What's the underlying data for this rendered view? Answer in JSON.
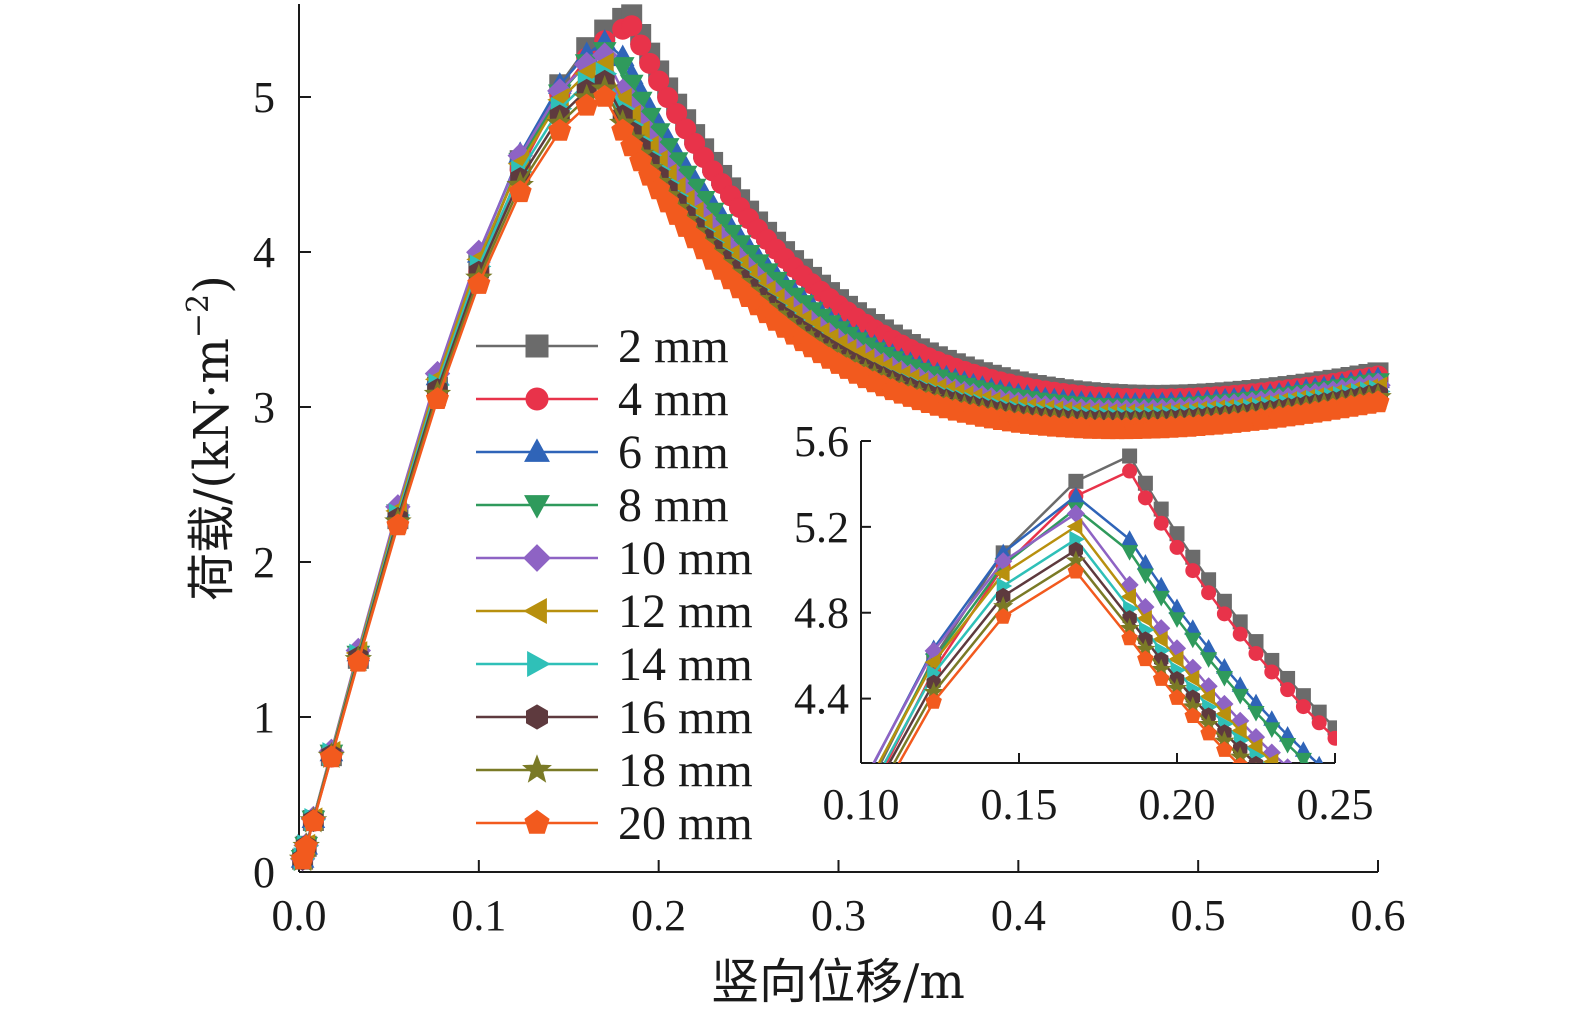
{
  "chart_data": [
    {
      "type": "line",
      "xlabel": "竖向位移/m",
      "ylabel_text": "荷载/(kN·m",
      "ylabel_sup": "−2",
      "ylabel_close": ")",
      "xlim": [
        0,
        0.6
      ],
      "ylim": [
        0,
        5.6
      ],
      "xticks": [
        "0.0",
        "0.1",
        "0.2",
        "0.3",
        "0.4",
        "0.5",
        "0.6"
      ],
      "yticks": [
        "0",
        "1",
        "2",
        "3",
        "4",
        "5"
      ],
      "grid": false,
      "legend_position": "center-left",
      "series": [
        {
          "name": "2 mm",
          "color": "#6b6b6b",
          "marker": "square",
          "peak": 5.53,
          "x_peak": 0.185,
          "end": 3.22
        },
        {
          "name": "4 mm",
          "color": "#e8334a",
          "marker": "circle",
          "peak": 5.46,
          "x_peak": 0.185,
          "end": 3.2
        },
        {
          "name": "6 mm",
          "color": "#2f64b8",
          "marker": "triangle-up",
          "peak": 5.38,
          "x_peak": 0.175,
          "end": 3.18
        },
        {
          "name": "8 mm",
          "color": "#2f9a5c",
          "marker": "triangle-down",
          "peak": 5.32,
          "x_peak": 0.175,
          "end": 3.16
        },
        {
          "name": "10 mm",
          "color": "#8e63c4",
          "marker": "diamond",
          "peak": 5.27,
          "x_peak": 0.17,
          "end": 3.14
        },
        {
          "name": "12 mm",
          "color": "#b8900e",
          "marker": "triangle-left",
          "peak": 5.21,
          "x_peak": 0.17,
          "end": 3.12
        },
        {
          "name": "14 mm",
          "color": "#2fc0b8",
          "marker": "triangle-right",
          "peak": 5.15,
          "x_peak": 0.17,
          "end": 3.1
        },
        {
          "name": "16 mm",
          "color": "#5e3a3e",
          "marker": "hexagon",
          "peak": 5.1,
          "x_peak": 0.17,
          "end": 3.08
        },
        {
          "name": "18 mm",
          "color": "#7a7a26",
          "marker": "star",
          "peak": 5.05,
          "x_peak": 0.17,
          "end": 3.06
        },
        {
          "name": "20 mm",
          "color": "#f25a1e",
          "marker": "pentagon",
          "peak": 5.0,
          "x_peak": 0.17,
          "end": 3.03
        }
      ]
    },
    {
      "type": "line",
      "role": "inset",
      "xlim": [
        0.1,
        0.25
      ],
      "ylim": [
        4.1,
        5.6
      ],
      "xticks": [
        "0.10",
        "0.15",
        "0.20",
        "0.25"
      ],
      "yticks": [
        "4.4",
        "4.8",
        "5.2",
        "5.6"
      ]
    }
  ]
}
